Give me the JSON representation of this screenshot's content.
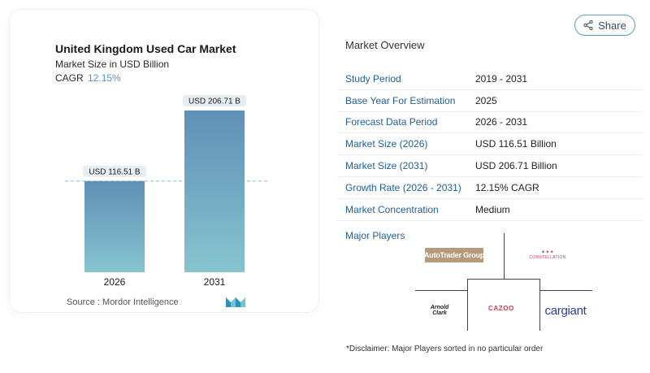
{
  "chart_data": {
    "type": "bar",
    "title": "United Kingdom Used Car Market",
    "subtitle": "Market Size in USD Billion",
    "cagr_label": "CAGR",
    "cagr_value": "12.15%",
    "categories": [
      "2026",
      "2031"
    ],
    "values": [
      116.51,
      206.71
    ],
    "data_labels": [
      "USD 116.51 B",
      "USD 206.71 B"
    ],
    "reference_line_value": 116.51,
    "ylim": [
      0,
      206.71
    ],
    "bar_color_top": "#5f8fb6",
    "bar_color_bottom": "#86c4cf",
    "label_bg_color": "#e6eef3",
    "xlabel": "",
    "ylabel": ""
  },
  "source": {
    "label": "Source :",
    "name": "Mordor Intelligence"
  },
  "share": {
    "label": "Share",
    "icon": "share-icon"
  },
  "overview": {
    "title": "Market Overview",
    "rows": [
      {
        "label": "Study Period",
        "value": "2019 - 2031"
      },
      {
        "label": "Base Year For Estimation",
        "value": "2025"
      },
      {
        "label": "Forecast Data Period",
        "value": "2026 - 2031"
      },
      {
        "label": "Market Size (2026)",
        "value": "USD 116.51 Billion"
      },
      {
        "label": "Market Size (2031)",
        "value": "USD 206.71 Billion"
      },
      {
        "label": "Growth Rate (2026 - 2031)",
        "value": "12.15% CAGR"
      },
      {
        "label": "Market Concentration",
        "value": "Medium"
      }
    ]
  },
  "players": {
    "title": "Major Players",
    "logos": {
      "autotrader": "AutoTrader Group",
      "constellation": "CONSTELLATION",
      "arnold_line1": "Arnold",
      "arnold_line2": "Clark",
      "cazoo": "CAZOO",
      "cargiant": "cargiant"
    }
  },
  "disclaimer": "*Disclaimer: Major Players sorted in no particular order",
  "colors": {
    "accent_blue": "#1f5e99",
    "cagr_blue": "#5a8fc2",
    "share_border": "#5b9bd5"
  }
}
